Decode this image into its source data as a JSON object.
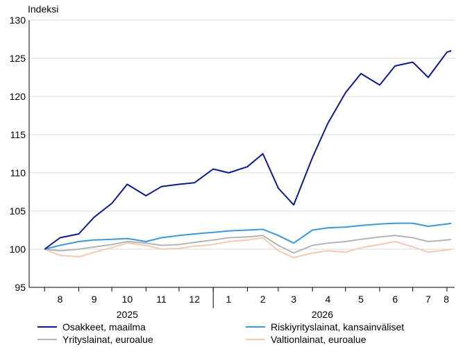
{
  "chart_data": {
    "type": "line",
    "ylabel": "Indeksi",
    "ylim": [
      95,
      130
    ],
    "yticks": [
      95,
      100,
      105,
      110,
      115,
      120,
      125,
      130
    ],
    "month_labels": [
      "8",
      "9",
      "10",
      "11",
      "12",
      "1",
      "2",
      "3",
      "4",
      "5",
      "6",
      "7",
      "8"
    ],
    "year_labels": [
      "2025",
      "2026"
    ],
    "grid": true,
    "legend_position": "bottom",
    "x": [
      "2025-08-01",
      "2025-08-15",
      "2025-09-01",
      "2025-09-15",
      "2025-10-01",
      "2025-10-15",
      "2025-11-01",
      "2025-11-15",
      "2025-12-01",
      "2025-12-15",
      "2026-01-01",
      "2026-01-15",
      "2026-02-01",
      "2026-02-15",
      "2026-03-01",
      "2026-03-15",
      "2026-04-01",
      "2026-04-15",
      "2026-05-01",
      "2026-05-15",
      "2026-06-01",
      "2026-06-15",
      "2026-07-01",
      "2026-07-15",
      "2026-08-01",
      "2026-08-05"
    ],
    "series": [
      {
        "name": "Osakkeet, maailma",
        "color": "#0a1a8c",
        "values": [
          100.0,
          101.5,
          102.0,
          104.2,
          106.0,
          108.5,
          107.0,
          108.2,
          108.5,
          108.7,
          110.5,
          110.0,
          110.8,
          112.5,
          108.0,
          105.8,
          112.0,
          116.5,
          120.5,
          123.0,
          121.5,
          124.0,
          124.5,
          122.5,
          125.8,
          126.0
        ]
      },
      {
        "name": "Riskiyrityslainat, kansainväliset",
        "color": "#3c96dc",
        "values": [
          100.0,
          100.5,
          101.0,
          101.2,
          101.3,
          101.4,
          101.0,
          101.5,
          101.8,
          102.0,
          102.2,
          102.4,
          102.5,
          102.6,
          101.8,
          100.8,
          102.5,
          102.8,
          102.9,
          103.1,
          103.3,
          103.4,
          103.4,
          103.0,
          103.3,
          103.4
        ]
      },
      {
        "name": "Yrityslainat, euroalue",
        "color": "#b4b4b4",
        "values": [
          100.0,
          99.8,
          100.0,
          100.3,
          100.6,
          101.0,
          100.8,
          100.5,
          100.6,
          100.9,
          101.2,
          101.5,
          101.6,
          101.8,
          100.5,
          99.5,
          100.5,
          100.8,
          101.0,
          101.3,
          101.6,
          101.8,
          101.5,
          101.0,
          101.2,
          101.3
        ]
      },
      {
        "name": "Valtionlainat, euroalue",
        "color": "#f5c8b4",
        "values": [
          100.0,
          99.2,
          99.0,
          99.6,
          100.2,
          100.8,
          100.5,
          100.0,
          100.1,
          100.4,
          100.6,
          101.0,
          101.2,
          101.5,
          99.8,
          98.9,
          99.5,
          99.8,
          99.6,
          100.2,
          100.6,
          101.0,
          100.3,
          99.6,
          99.9,
          100.0
        ]
      }
    ]
  }
}
